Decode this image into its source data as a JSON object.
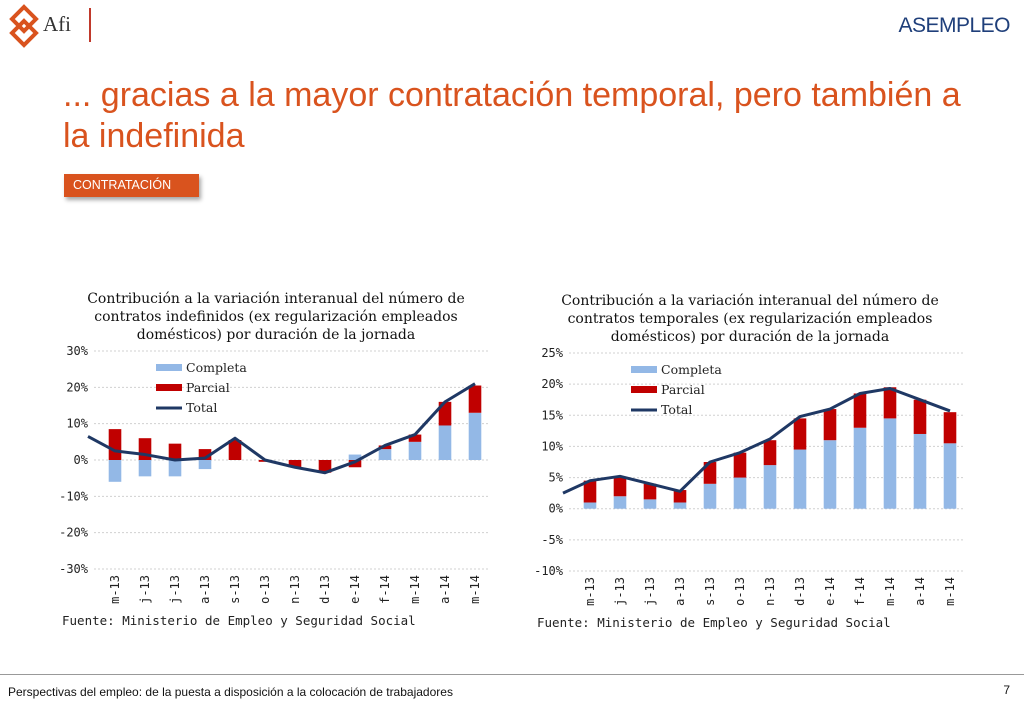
{
  "header": {
    "afi_logo_text": "Afi",
    "asempleo_logo_text": "ASEMPLEO",
    "title": "... gracias a la mayor contratación temporal, pero también a la indefinida",
    "section_tag": "CONTRATACIÓN"
  },
  "colors": {
    "completa": "#93b8e6",
    "parcial": "#c00000",
    "total": "#1f3864",
    "accent": "#d9531e"
  },
  "chart_data": [
    {
      "type": "bar",
      "stacked": true,
      "title": "Contribución a la variación interanual del número de contratos indefinidos (ex regularización empleados domésticos) por duración de la jornada",
      "categories": [
        "m-13",
        "j-13",
        "j-13",
        "a-13",
        "s-13",
        "o-13",
        "n-13",
        "d-13",
        "e-14",
        "f-14",
        "m-14",
        "a-14",
        "m-14"
      ],
      "ylim": [
        -30,
        30
      ],
      "yticks": [
        30,
        20,
        10,
        0,
        -10,
        -20,
        -30
      ],
      "ytick_labels": [
        "30%",
        "20%",
        "10%",
        "0%",
        "-10%",
        "-20%",
        "-30%"
      ],
      "legend": [
        "Completa",
        "Parcial",
        "Total"
      ],
      "series": [
        {
          "name": "Completa",
          "kind": "bar",
          "values": [
            -6,
            -4.5,
            -4.5,
            -2.5,
            0,
            0,
            0,
            0,
            1.5,
            3,
            5,
            9.5,
            13
          ]
        },
        {
          "name": "Parcial",
          "kind": "bar",
          "values": [
            8.5,
            6,
            4.5,
            3,
            5.5,
            -0.5,
            -2,
            -3.5,
            -2,
            1,
            2,
            6.5,
            7.5
          ]
        },
        {
          "name": "Total",
          "kind": "line",
          "values": [
            2.5,
            1.5,
            0,
            0.5,
            6,
            0,
            -2,
            -3.5,
            -0.5,
            4,
            7,
            16,
            21
          ]
        }
      ],
      "line_start": 6.5,
      "source": "Fuente: Ministerio de Empleo y Seguridad Social"
    },
    {
      "type": "bar",
      "stacked": true,
      "title": "Contribución a la variación interanual del número de contratos temporales (ex regularización empleados domésticos) por duración de la jornada",
      "categories": [
        "m-13",
        "j-13",
        "j-13",
        "a-13",
        "s-13",
        "o-13",
        "n-13",
        "d-13",
        "e-14",
        "f-14",
        "m-14",
        "a-14",
        "m-14"
      ],
      "ylim": [
        -10,
        25
      ],
      "yticks": [
        25,
        20,
        15,
        10,
        5,
        0,
        -5,
        -10
      ],
      "ytick_labels": [
        "25%",
        "20%",
        "15%",
        "10%",
        "5%",
        "0%",
        "-5%",
        "-10%"
      ],
      "legend": [
        "Completa",
        "Parcial",
        "Total"
      ],
      "series": [
        {
          "name": "Completa",
          "kind": "bar",
          "values": [
            1,
            2,
            1.5,
            1,
            4,
            5,
            7,
            9.5,
            11,
            13,
            14.5,
            12,
            10.5
          ]
        },
        {
          "name": "Parcial",
          "kind": "bar",
          "values": [
            3.5,
            3,
            2.5,
            2,
            3.5,
            4,
            4,
            5,
            5,
            5.5,
            5,
            5.5,
            5
          ]
        },
        {
          "name": "Total",
          "kind": "line",
          "values": [
            4.5,
            5.2,
            4,
            2.8,
            7.5,
            9,
            11.2,
            14.8,
            16,
            18.5,
            19.3,
            17.5,
            15.7
          ]
        }
      ],
      "line_start": 2.5,
      "source": "Fuente: Ministerio de Empleo y Seguridad Social"
    }
  ],
  "footer": {
    "text": "Perspectivas del empleo: de la puesta a disposición a la colocación de trabajadores",
    "page": "7"
  }
}
